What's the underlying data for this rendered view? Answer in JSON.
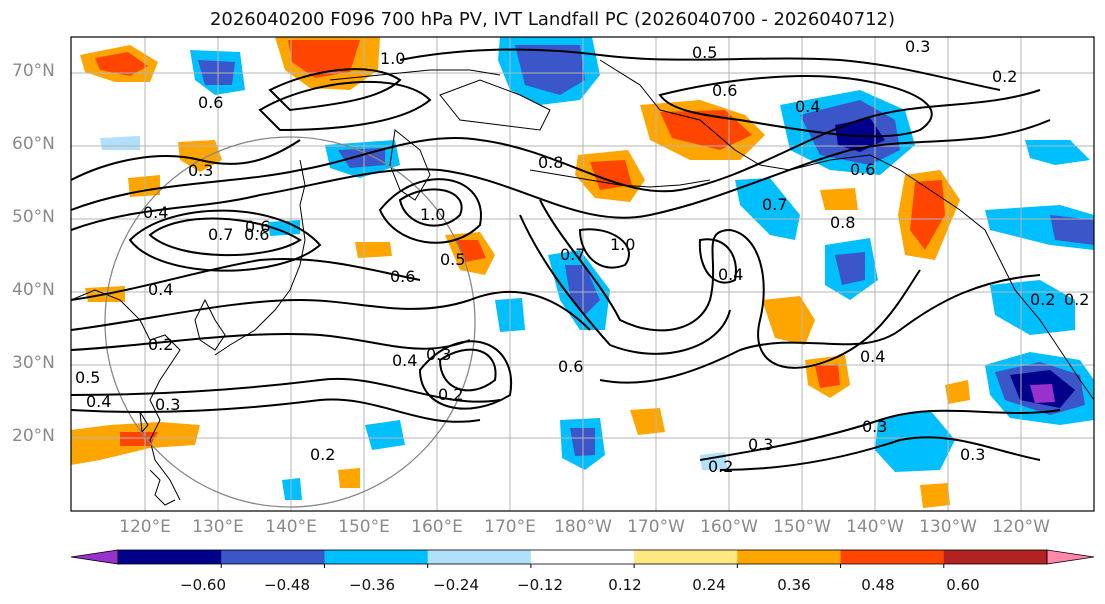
{
  "title": "2026040200 F096 700 hPa PV, IVT Landfall PC (2026040700 - 2026040712)",
  "lat_labels": [
    "70°N",
    "60°N",
    "50°N",
    "40°N",
    "30°N",
    "20°N"
  ],
  "lon_labels": [
    "120°E",
    "130°E",
    "140°E",
    "150°E",
    "160°E",
    "170°E",
    "180°W",
    "170°W",
    "160°W",
    "150°W",
    "140°W",
    "130°W",
    "120°W"
  ],
  "colorbar": {
    "ticks": [
      "−0.60",
      "−0.48",
      "−0.36",
      "−0.24",
      "−0.12",
      "0.12",
      "0.24",
      "0.36",
      "0.48",
      "0.60"
    ],
    "colors": [
      "#9932cc",
      "#00008b",
      "#3a56c8",
      "#00bfff",
      "#b0e0fa",
      "#ffffff",
      "#ffe882",
      "#ffa500",
      "#ff4500",
      "#b22222",
      "#ff88aa"
    ]
  },
  "contour_labels": [
    "1.0",
    "0.5",
    "0.6",
    "0.3",
    "0.2",
    "0.4",
    "0.6",
    "0.3",
    "0.6",
    "0.4",
    "0.7",
    "0.6",
    "1.0",
    "0.5",
    "0.6",
    "0.8",
    "1.0",
    "0.7",
    "0.4",
    "0.7",
    "0.8",
    "0.3",
    "0.4",
    "0.3",
    "0.2",
    "0.6",
    "0.4",
    "0.3",
    "0.2",
    "0.2",
    "0.3",
    "0.2",
    "0.5",
    "0.4",
    "0.3",
    "0.2",
    "0.2",
    "0.4",
    "0.6"
  ],
  "colors": {
    "land_lines": "#000000",
    "grid": "#b5b5b5",
    "axis_text": "#8a8a8a"
  }
}
